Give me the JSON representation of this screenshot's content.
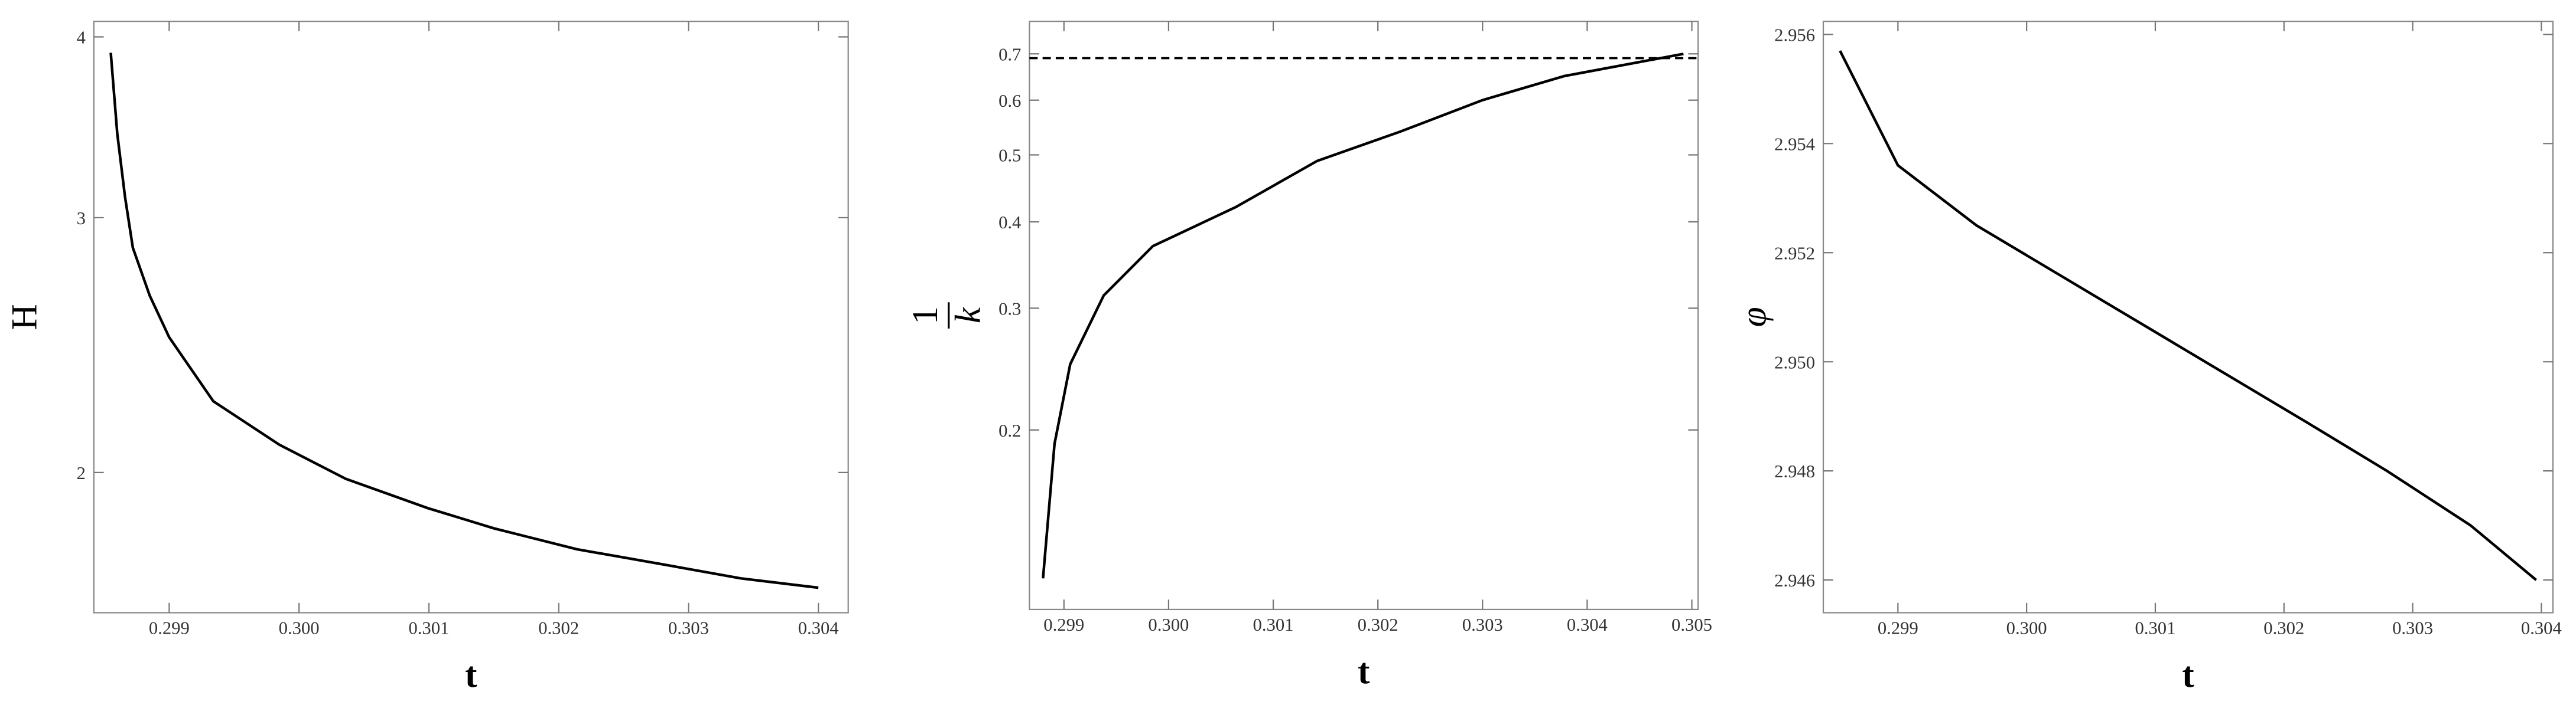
{
  "chart_data": [
    {
      "type": "line",
      "xlabel": "t",
      "ylabel": "H",
      "log_y": true,
      "color": "#000000",
      "x": [
        0.29855,
        0.2986,
        0.29866,
        0.29872,
        0.29885,
        0.299,
        0.29934,
        0.29985,
        0.30036,
        0.30099,
        0.3015,
        0.30214,
        0.30277,
        0.3034,
        0.304
      ],
      "values": [
        3.9,
        3.43,
        3.1,
        2.86,
        2.65,
        2.48,
        2.24,
        2.09,
        1.98,
        1.89,
        1.83,
        1.77,
        1.73,
        1.69,
        1.665
      ],
      "xlim": [
        0.29842,
        0.30423
      ],
      "ylim": [
        1.6,
        4.1
      ],
      "xticks": [
        0.299,
        {
          "value": 0.3,
          "label": "0.300"
        },
        0.301,
        0.302,
        0.303,
        0.304
      ],
      "yticks": [
        2,
        3,
        4
      ]
    },
    {
      "type": "line",
      "xlabel": "t",
      "ylabel_numerator": "1",
      "ylabel_denominator": "k",
      "log_y": true,
      "color": "#000000",
      "x": [
        0.2988,
        0.29891,
        0.29906,
        0.29938,
        0.29985,
        0.30064,
        0.30142,
        0.30221,
        0.303,
        0.30378,
        0.30492
      ],
      "values": [
        0.122,
        0.191,
        0.249,
        0.313,
        0.369,
        0.42,
        0.49,
        0.54,
        0.6,
        0.65,
        0.7
      ],
      "reference_line": 0.69,
      "xlim": [
        0.29867,
        0.30506
      ],
      "ylim": [
        0.11,
        0.78
      ],
      "xticks": [
        0.299,
        {
          "value": 0.3,
          "label": "0.300"
        },
        0.301,
        0.302,
        0.303,
        0.304,
        0.305
      ],
      "yticks": [
        0.2,
        0.3,
        0.4,
        0.5,
        0.6,
        0.7
      ]
    },
    {
      "type": "line",
      "xlabel": "t",
      "ylabel": "φ",
      "log_y": false,
      "color": "#000000",
      "x": [
        0.29855,
        0.299,
        0.29961,
        0.30025,
        0.30089,
        0.30153,
        0.30217,
        0.3028,
        0.30345,
        0.30396
      ],
      "values": [
        2.9557,
        2.9536,
        2.9525,
        2.9516,
        2.9507,
        2.9498,
        2.9489,
        2.948,
        2.947,
        2.946
      ],
      "xlim": [
        0.29842,
        0.30409
      ],
      "ylim": [
        2.9454,
        2.95624
      ],
      "xticks": [
        0.299,
        {
          "value": 0.3,
          "label": "0.300"
        },
        0.301,
        0.302,
        0.303,
        0.304
      ],
      "yticks": [
        2.946,
        2.948,
        {
          "value": 2.95,
          "label": "2.950"
        },
        2.952,
        2.954,
        2.956
      ]
    }
  ]
}
